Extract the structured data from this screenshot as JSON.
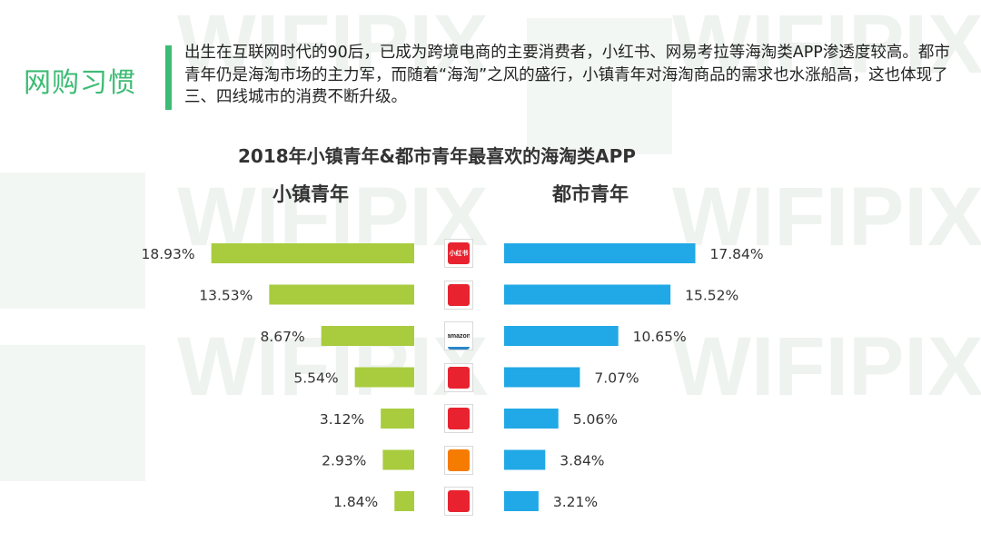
{
  "header": {
    "section_label": "网购习惯",
    "intro_text": "出生在互联网时代的90后，已成为跨境电商的主要消费者，小红书、网易考拉等海淘类APP渗透度较高。都市青年仍是海淘市场的主力军，而随着“海淘”之风的盛行，小镇青年对海淘商品的需求也水涨船高，这也体现了三、四线城市的消费不断升级。",
    "watermark": "WIFIPIX"
  },
  "chart_data": {
    "type": "bar",
    "title": "2018年小镇青年&都市青年最喜欢的海淘类APP",
    "series": [
      {
        "name": "小镇青年",
        "values": [
          18.93,
          13.53,
          8.67,
          5.54,
          3.12,
          2.93,
          1.84
        ]
      },
      {
        "name": "都市青年",
        "values": [
          17.84,
          15.52,
          10.65,
          7.07,
          5.06,
          3.84,
          3.21
        ]
      }
    ],
    "value_labels_left": [
      "18.93%",
      "13.53%",
      "8.67%",
      "5.54%",
      "3.12%",
      "2.93%",
      "1.84%"
    ],
    "value_labels_right": [
      "17.84%",
      "15.52%",
      "10.65%",
      "7.07%",
      "5.06%",
      "3.84%",
      "3.21%"
    ],
    "orientation": "horizontal-butterfly",
    "grid": false,
    "legend": "above-each-side"
  },
  "icons": [
    {
      "name": "xiaohongshu-app-icon",
      "text": "小红书",
      "color": "#e8232f"
    },
    {
      "name": "kaola-app-icon",
      "text": "",
      "color": "#e8232f"
    },
    {
      "name": "amazon-app-icon",
      "text": "amazon",
      "color": "#ffffff"
    },
    {
      "name": "yangmatou-app-icon",
      "text": "",
      "color": "#e8232f"
    },
    {
      "name": "jumei-app-icon",
      "text": "",
      "color": "#e8232f"
    },
    {
      "name": "tmall-global-app-icon",
      "text": "",
      "color": "#f57c00"
    },
    {
      "name": "jd-global-app-icon",
      "text": "",
      "color": "#e8232f"
    }
  ],
  "colors": {
    "left_series": "#a8cc3e",
    "right_series": "#21a8e6",
    "accent": "#3dbb74"
  }
}
